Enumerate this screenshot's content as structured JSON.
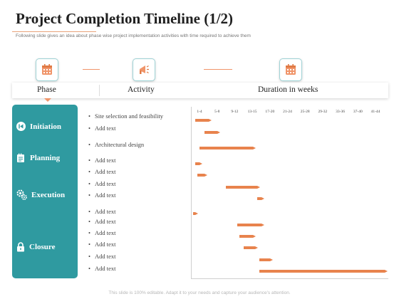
{
  "title": "Project Completion Timeline (1/2)",
  "subtitle": "Following slide gives an idea about phase wise project implementation activities with time required to achieve them",
  "icons": [
    "calendar-icon",
    "megaphone-icon",
    "calendar-icon"
  ],
  "headers": {
    "phase": "Phase",
    "activity": "Activity",
    "duration": "Duration in weeks"
  },
  "phases": [
    {
      "label": "Initiation",
      "icon": "skip-back-icon"
    },
    {
      "label": "Planning",
      "icon": "notepad-icon"
    },
    {
      "label": "Execution",
      "icon": "gears-icon"
    },
    {
      "label": "Closure",
      "icon": "lock-icon"
    }
  ],
  "activities": [
    "Site selection and feasibility",
    "Add text",
    "Architectural design",
    "Add text",
    "Add text",
    "Add text",
    "Add text",
    "Add text",
    "Add text",
    "Add text",
    "Add text",
    "Add text",
    "Add text"
  ],
  "week_ticks": [
    "1-4",
    "5-8",
    "9-12",
    "13-15",
    "17-20",
    "21-24",
    "25-28",
    "29-32",
    "33-36",
    "37-40",
    "41-44"
  ],
  "task_durations_weeks": [
    {
      "start": 1,
      "end": 4
    },
    {
      "start": 3,
      "end": 6
    },
    {
      "start": 2,
      "end": 14
    },
    {
      "start": 1,
      "end": 2
    },
    {
      "start": 1.5,
      "end": 3
    },
    {
      "start": 8,
      "end": 15
    },
    {
      "start": 15,
      "end": 16
    },
    {
      "start": 0.5,
      "end": 1
    },
    {
      "start": 10.5,
      "end": 16
    },
    {
      "start": 11,
      "end": 14
    },
    {
      "start": 12,
      "end": 14.5
    },
    {
      "start": 15.5,
      "end": 18
    },
    {
      "start": 15.5,
      "end": 44
    }
  ],
  "footer": "This slide is 100% editable. Adapt it to your needs and capture your audience's attention.",
  "colors": {
    "accent": "#e8834d",
    "teal": "#2f9aa0"
  }
}
